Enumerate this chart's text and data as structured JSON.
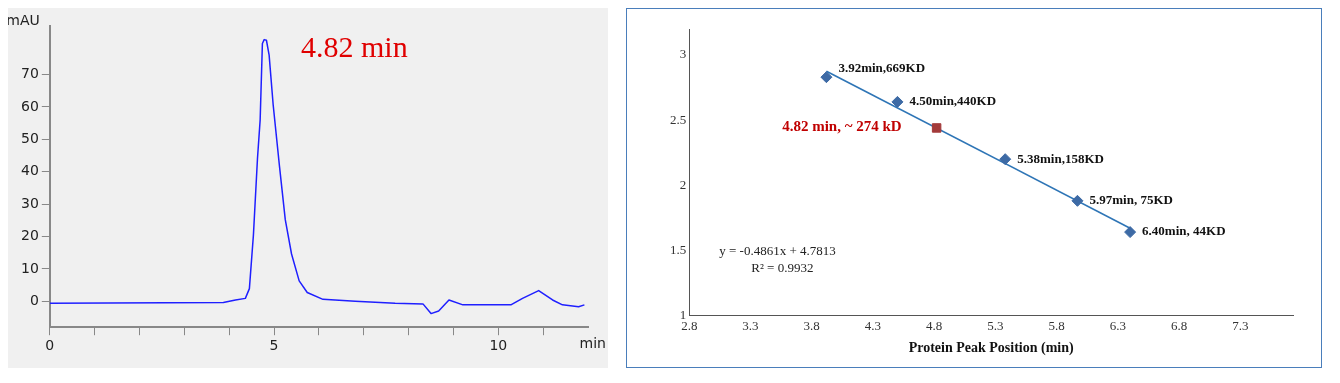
{
  "chart_data": [
    {
      "type": "line",
      "xlabel": "min",
      "ylabel": "mAU",
      "xlim": [
        0,
        12
      ],
      "ylim": [
        -8,
        85
      ],
      "xticks": [
        0,
        {
          "value": 1,
          "label": null
        },
        {
          "value": 2,
          "label": null
        },
        {
          "value": 3,
          "label": null
        },
        {
          "value": 4,
          "label": null
        },
        5,
        {
          "value": 6,
          "label": null
        },
        {
          "value": 7,
          "label": null
        },
        {
          "value": 8,
          "label": null
        },
        {
          "value": 9,
          "label": null
        },
        10,
        {
          "value": 11,
          "label": null
        }
      ],
      "yticks": [
        0,
        10,
        20,
        30,
        40,
        50,
        60,
        70
      ],
      "grid": false,
      "legend": false,
      "marker": "none",
      "annotations": [
        {
          "text": "4.82 min",
          "x": 4.82,
          "y": 80.8
        }
      ],
      "series": [
        {
          "color": "#1f1fff",
          "x": [
            0,
            3.87,
            4.14,
            4.36,
            4.45,
            4.54,
            4.63,
            4.69,
            4.74,
            4.78,
            4.83,
            4.89,
            4.98,
            5.12,
            5.25,
            5.39,
            5.56,
            5.74,
            6.09,
            6.81,
            7.7,
            8.32,
            8.5,
            8.67,
            8.9,
            9.21,
            10.28,
            10.54,
            10.9,
            11.21,
            11.43,
            11.79,
            11.92
          ],
          "values": [
            -0.6,
            -0.4,
            0.4,
            0.9,
            3.9,
            20.5,
            44,
            56,
            79.6,
            80.8,
            80.6,
            76,
            60.7,
            41.8,
            25.2,
            14.6,
            6.3,
            2.7,
            0.6,
            0,
            -0.6,
            -0.8,
            -3.8,
            -3,
            0.4,
            -1.1,
            -1.1,
            0.9,
            3.3,
            0.4,
            -1.1,
            -1.7,
            -1.1
          ]
        }
      ]
    },
    {
      "type": "scatter",
      "xlabel": "Protein Peak Position (min)",
      "xlim": [
        2.8,
        7.73
      ],
      "ylim": [
        1,
        3.2
      ],
      "xticks": [
        2.8,
        3.3,
        3.8,
        4.3,
        4.8,
        5.3,
        5.8,
        6.3,
        6.8,
        7.3
      ],
      "yticks": [
        1,
        1.5,
        2,
        2.5,
        3
      ],
      "grid": false,
      "legend": false,
      "annotations": [
        "y = -0.4861x + 4.7813",
        "R² = 0.9932",
        {
          "text": "4.82 min, ~ 274 kD",
          "x": 4.82,
          "y": 2.44
        }
      ],
      "series": [
        {
          "type": "line",
          "color": "#2e75b6",
          "marker": "none",
          "x": [
            3.92,
            6.4
          ],
          "values": [
            2.876,
            1.67
          ]
        },
        {
          "color": "#3d6aa5",
          "marker": "diamond",
          "x": [
            3.92,
            4.5,
            5.38,
            5.97,
            6.4
          ],
          "values": [
            2.83,
            2.64,
            2.2,
            1.88,
            1.64
          ],
          "value_labels": [
            "3.92min,669KD",
            "4.50min,440KD",
            "5.38min,158KD",
            "5.97min, 75KD",
            "6.40min, 44KD"
          ]
        },
        {
          "color": "#a33a3a",
          "marker": "square",
          "x": [
            4.82
          ],
          "values": [
            2.44
          ]
        }
      ]
    }
  ]
}
